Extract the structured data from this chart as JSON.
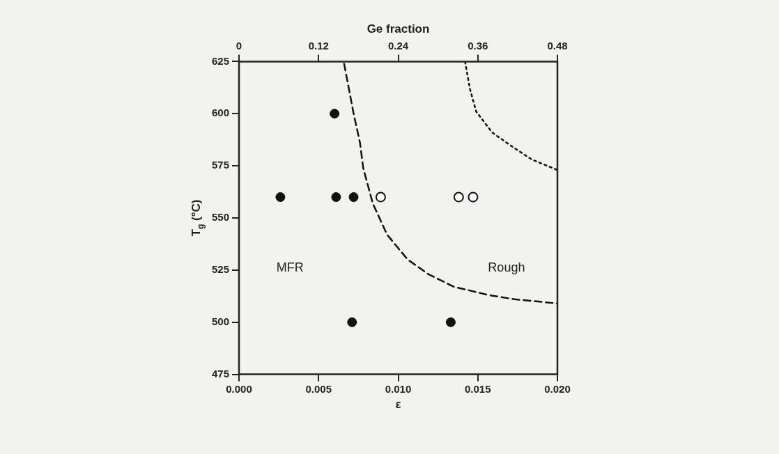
{
  "chart_data": {
    "type": "scatter",
    "xlabel": "ε",
    "ylabel": "T$_{g}$ (°C)",
    "x2label": "Ge fraction",
    "xlim": [
      0,
      0.02
    ],
    "xticks": [
      {
        "value": 0,
        "label": "0.000"
      },
      {
        "value": 0.005,
        "label": "0.005"
      },
      {
        "value": 0.01,
        "label": "0.010"
      },
      {
        "value": 0.015,
        "label": "0.015"
      },
      {
        "value": 0.02,
        "label": "0.020"
      }
    ],
    "x2lim": [
      0,
      0.48
    ],
    "x2ticks": [
      0,
      0.12,
      0.24,
      0.36,
      0.48
    ],
    "ylim": [
      475,
      625
    ],
    "yticks": [
      475,
      500,
      525,
      550,
      575,
      600,
      625
    ],
    "grid": false,
    "legend": false,
    "marker": "circle",
    "series": [
      {
        "color": "#111111",
        "x": [
          0.0026,
          0.006,
          0.0061,
          0.0072,
          0.0071,
          0.0133
        ],
        "values": [
          560,
          600,
          560,
          560,
          500,
          500
        ]
      },
      {
        "color": "#111111",
        "marker": "open_circle",
        "x": [
          0.0089,
          0.0138,
          0.0147
        ],
        "values": [
          560,
          560,
          560
        ]
      },
      {
        "type": "line",
        "color": "#111111",
        "line_style": "dashed",
        "marker": "none",
        "x": [
          0.0066,
          0.0069,
          0.0072,
          0.0076,
          0.0078,
          0.0084,
          0.0093,
          0.0106,
          0.0119,
          0.0135,
          0.0157,
          0.0173,
          0.02
        ],
        "values": [
          624,
          612,
          600,
          586,
          574,
          557,
          542,
          530,
          523,
          517,
          513,
          511,
          509
        ]
      },
      {
        "type": "line",
        "color": "#111111",
        "line_style": "dotted",
        "marker": "none",
        "x": [
          0.0142,
          0.0145,
          0.0149,
          0.0159,
          0.0172,
          0.0184,
          0.02
        ],
        "values": [
          625,
          612,
          601,
          591,
          584,
          578,
          573
        ]
      }
    ],
    "annotations": [
      "MFR",
      "Rough"
    ]
  }
}
